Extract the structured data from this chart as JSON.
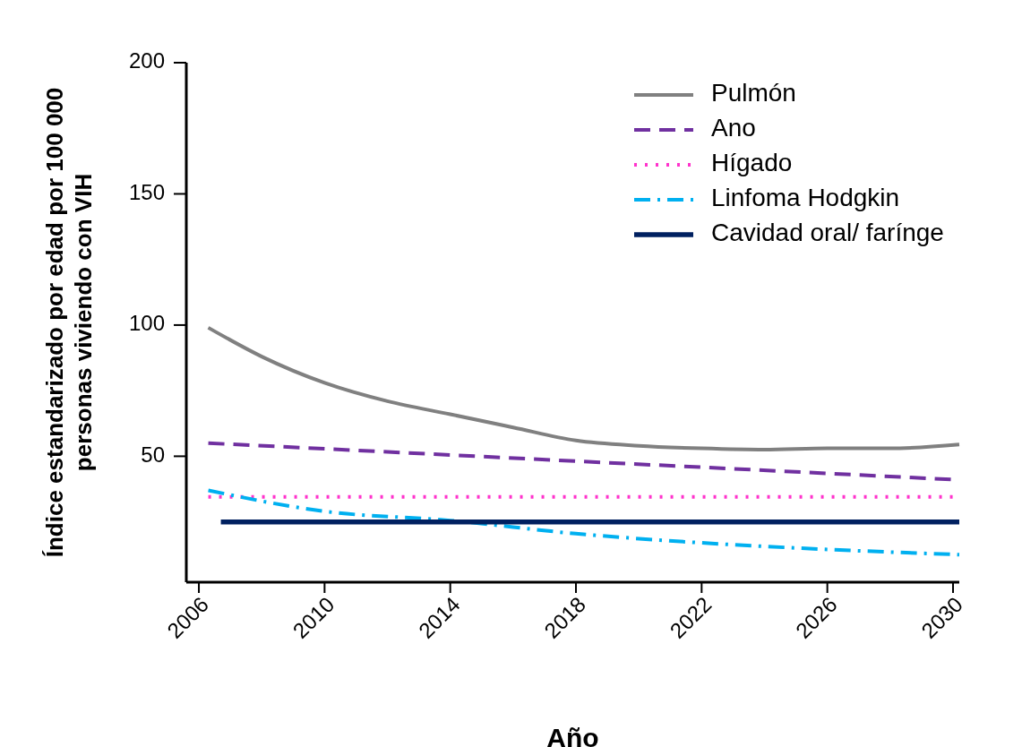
{
  "chart_data": {
    "type": "line",
    "xlabel": "Año",
    "ylabel": "Índice estandarizado por edad por 100 000 personas viviendo con VIH",
    "xlim": [
      2005.6,
      2030.2
    ],
    "xticks": [
      2006,
      2010,
      2014,
      2018,
      2022,
      2026,
      2030
    ],
    "ylim": [
      2,
      200
    ],
    "yticks": [
      50,
      100,
      150,
      200
    ],
    "legend": "top right",
    "grid": false,
    "series": [
      {
        "name": "Pulmón",
        "color": "#808080",
        "line_style": "solid",
        "x": [
          2006.3,
          2008,
          2010,
          2012,
          2014,
          2016,
          2018,
          2020,
          2022,
          2024,
          2026,
          2028,
          2030.2
        ],
        "values": [
          99,
          88,
          78,
          71,
          66,
          61,
          56,
          54,
          53,
          52.5,
          53,
          53,
          54.5
        ]
      },
      {
        "name": "Ano",
        "color": "#7030a0",
        "line_style": "dashed",
        "x": [
          2006.3,
          2030.2
        ],
        "values": [
          55,
          41
        ]
      },
      {
        "name": "Hígado",
        "color": "#ff33cc",
        "line_style": "dotted",
        "x": [
          2006.3,
          2030.2
        ],
        "values": [
          34.5,
          34.5
        ]
      },
      {
        "name": "Linfoma Hodgkin",
        "color": "#00b0f0",
        "line_style": "dashdot",
        "x": [
          2006.3,
          2010,
          2014,
          2018,
          2022,
          2026,
          2030.2
        ],
        "values": [
          37,
          29,
          25.5,
          20.5,
          17,
          14.5,
          12.5
        ]
      },
      {
        "name": "Cavidad oral/ farínge",
        "color": "#002060",
        "line_style": "solid",
        "x": [
          2006.7,
          2030.2
        ],
        "values": [
          25,
          25
        ]
      }
    ]
  }
}
